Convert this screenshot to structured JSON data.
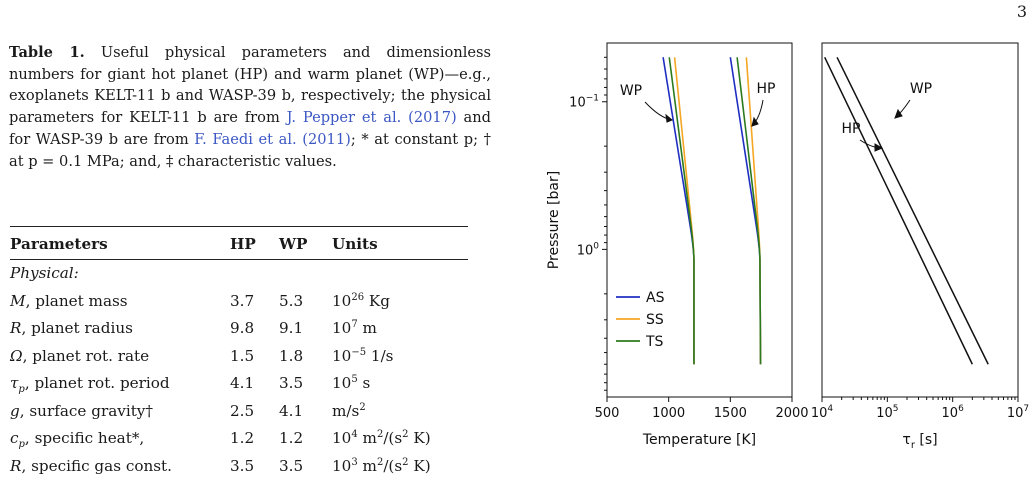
{
  "page_number": "3",
  "caption": {
    "label": "Table 1.",
    "text_1": "Useful physical parameters and dimensionless numbers for giant hot planet (HP) and warm planet (WP)—e.g., exoplanets KELT-11 b and WASP-39 b, respectively; the physical parameters for KELT-11 b are from ",
    "cite_1": "J. Pepper et al. (2017)",
    "text_2": " and for WASP-39 b are from ",
    "cite_2": "F. Faedi et al. (2011)",
    "text_3": "; * at constant p; † at p = 0.1 MPa; and, ‡ characteristic values."
  },
  "table": {
    "headers": [
      "Parameters",
      "HP",
      "WP",
      "Units"
    ],
    "section": "Physical:",
    "rows": [
      {
        "sym": "M",
        "name": ", planet mass",
        "hp": "3.7",
        "wp": "5.3",
        "unit": "10^26 Kg"
      },
      {
        "sym": "R",
        "name": ",  planet radius",
        "hp": "9.8",
        "wp": "9.1",
        "unit": "10^7 m"
      },
      {
        "sym": "Ω",
        "name": ",  planet rot. rate",
        "hp": "1.5",
        "wp": "1.8",
        "unit": "10^−5 1/s"
      },
      {
        "sym": "τp",
        "name": ", planet rot. period",
        "hp": "4.1",
        "wp": "3.5",
        "unit": "10^5 s"
      },
      {
        "sym": "g",
        "name": ",  surface gravity†",
        "hp": "2.5",
        "wp": "4.1",
        "unit": "m/s^2"
      },
      {
        "sym": "cp",
        "name": ", specific heat*,",
        "hp": "1.2",
        "wp": "1.2",
        "unit": "10^4 m^2/(s^2 K)"
      },
      {
        "sym": "R",
        "name": ", specific gas const.",
        "hp": "3.5",
        "wp": "3.5",
        "unit": "10^3 m^2/(s^2 K)"
      }
    ]
  },
  "chart_data": [
    {
      "type": "line",
      "xlabel": "Temperature [K]",
      "ylabel": "Pressure [bar]",
      "xlim": [
        500,
        2000
      ],
      "ylim_bar": [
        10,
        0.04
      ],
      "y_scale": "log, inverted",
      "x_ticks": [
        "500",
        "1000",
        "1500",
        "2000"
      ],
      "y_ticks": [
        {
          "v": 0.1,
          "label": "10^−1"
        },
        {
          "v": 1,
          "label": "10^0"
        }
      ],
      "legend": {
        "position": "lower-left",
        "entries": [
          "AS",
          "SS",
          "TS"
        ]
      },
      "annotations": [
        "WP",
        "HP"
      ],
      "colors": {
        "AS": "#1f2fc2",
        "SS": "#f5a623",
        "TS": "#2c7a1e"
      },
      "series": [
        {
          "name": "AS",
          "group": "WP",
          "points": [
            [
              955,
              0.05
            ],
            [
              1205,
              1.0
            ],
            [
              1205,
              6.0
            ]
          ]
        },
        {
          "name": "SS",
          "group": "WP",
          "points": [
            [
              1048,
              0.05
            ],
            [
              1205,
              1.0
            ],
            [
              1205,
              6.0
            ]
          ]
        },
        {
          "name": "TS",
          "group": "WP",
          "points": [
            [
              1005,
              0.05
            ],
            [
              1205,
              1.0
            ],
            [
              1205,
              6.0
            ]
          ]
        },
        {
          "name": "AS",
          "group": "HP",
          "points": [
            [
              1500,
              0.05
            ],
            [
              1740,
              1.0
            ],
            [
              1745,
              6.0
            ]
          ]
        },
        {
          "name": "SS",
          "group": "HP",
          "points": [
            [
              1630,
              0.05
            ],
            [
              1740,
              1.0
            ],
            [
              1745,
              6.0
            ]
          ]
        },
        {
          "name": "TS",
          "group": "HP",
          "points": [
            [
              1555,
              0.05
            ],
            [
              1740,
              1.0
            ],
            [
              1745,
              6.0
            ]
          ]
        }
      ]
    },
    {
      "type": "line",
      "xlabel": "τr [s]",
      "x_scale": "log",
      "xlim": [
        10000,
        10000000
      ],
      "x_ticks": [
        "10^4",
        "10^5",
        "10^6",
        "10^7"
      ],
      "annotations": [
        "HP",
        "WP"
      ],
      "series": [
        {
          "name": "HP",
          "points": [
            [
              11000,
              0.05
            ],
            [
              2000000,
              6.0
            ]
          ]
        },
        {
          "name": "WP",
          "points": [
            [
              17000,
              0.05
            ],
            [
              3500000,
              6.0
            ]
          ]
        }
      ]
    }
  ]
}
